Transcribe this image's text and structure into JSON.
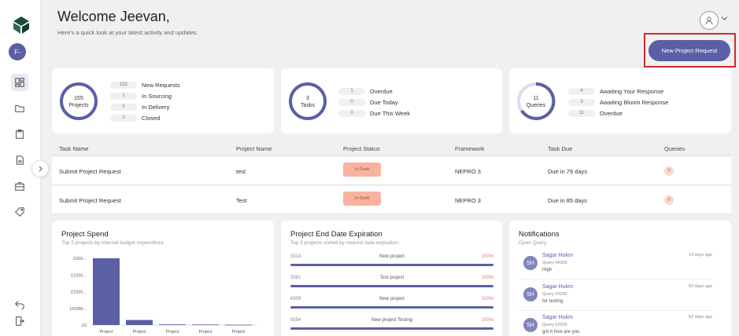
{
  "header": {
    "title": "Welcome Jeevan,",
    "subtitle": "Here's a quick look at your latest activity and updates.",
    "new_request_label": "New Project Request"
  },
  "sidebar": {
    "avatar_initials": "F-",
    "items": [
      {
        "icon": "dashboard-icon"
      },
      {
        "icon": "folder-icon"
      },
      {
        "icon": "clipboard-icon"
      },
      {
        "icon": "document-icon"
      },
      {
        "icon": "briefcase-icon"
      },
      {
        "icon": "tag-icon"
      }
    ],
    "bottom_items": [
      {
        "icon": "back-arrow-icon"
      },
      {
        "icon": "logout-icon"
      }
    ]
  },
  "summary": {
    "projects": {
      "count": "155",
      "label": "Projects",
      "stats": [
        {
          "value": "152",
          "label": "New Requests"
        },
        {
          "value": "1",
          "label": "In Sourcing"
        },
        {
          "value": "0",
          "label": "In Delivery"
        },
        {
          "value": "1",
          "label": "Closed"
        }
      ]
    },
    "tasks": {
      "count": "3",
      "label": "Tasks",
      "stats": [
        {
          "value": "1",
          "label": "Overdue"
        },
        {
          "value": "0",
          "label": "Due Today"
        },
        {
          "value": "0",
          "label": "Due This Week"
        }
      ]
    },
    "queries": {
      "count": "11",
      "label": "Queries",
      "stats": [
        {
          "value": "4",
          "label": "Awaiting Your Response"
        },
        {
          "value": "3",
          "label": "Awaiting Bloom Response"
        },
        {
          "value": "11",
          "label": "Overdue"
        }
      ]
    }
  },
  "tasks_table": {
    "columns": [
      "Task Name",
      "Project Name",
      "Project Status",
      "Framework",
      "Task Due",
      "Queries"
    ],
    "rows": [
      {
        "task": "Submit Project Request",
        "project": "test",
        "status": "In Draft",
        "framework": "NEPRO 3",
        "due": "Due in 79 days",
        "queries": "0"
      },
      {
        "task": "Submit Project Request",
        "project": "Test",
        "status": "In Draft",
        "framework": "NEPRO 3",
        "due": "Due in 85 days",
        "queries": "0"
      }
    ]
  },
  "project_spend": {
    "title": "Project Spend",
    "subtitle": "Top 5 projects by internal budget expenditure"
  },
  "chart_data": {
    "type": "bar",
    "categories": [
      "Project",
      "Project",
      "Project",
      "Project",
      "Project"
    ],
    "values": [
      2000,
      150,
      20,
      15,
      10
    ],
    "ytick_labels": [
      "£0",
      "£500M...",
      "£1000...",
      "£1500...",
      "£200..."
    ],
    "ylim": [
      0,
      2000
    ],
    "bar_color": "#5a5fa6"
  },
  "expiration": {
    "title": "Project End Date Expiration",
    "subtitle": "Top 5 projects sorted by nearest date expiration.",
    "rows": [
      {
        "code": "3314",
        "name": "New project",
        "pct": "100%"
      },
      {
        "code": "3381",
        "name": "Test project",
        "pct": "100%"
      },
      {
        "code": "6309",
        "name": "New project",
        "pct": "100%"
      },
      {
        "code": "6554",
        "name": "New project Testing",
        "pct": "100%"
      }
    ]
  },
  "notifications": {
    "title": "Notifications",
    "subtitle": "Open Query",
    "items": [
      {
        "initials": "SH",
        "name": "Sagar Hukm",
        "query": "Query #6303",
        "message": "High",
        "time": "13 days ago"
      },
      {
        "initials": "SH",
        "name": "Sagar Hukm",
        "query": "Query #3292",
        "message": "for testing",
        "time": "50 days ago"
      },
      {
        "initials": "SH",
        "name": "Sagar Hukm",
        "query": "Query #2026",
        "message": "got it how are you",
        "time": "62 days ago"
      }
    ]
  },
  "colors": {
    "accent": "#5a5fa6",
    "draft_badge": "#f7b2a0",
    "highlight_frame": "#d32a2a"
  }
}
